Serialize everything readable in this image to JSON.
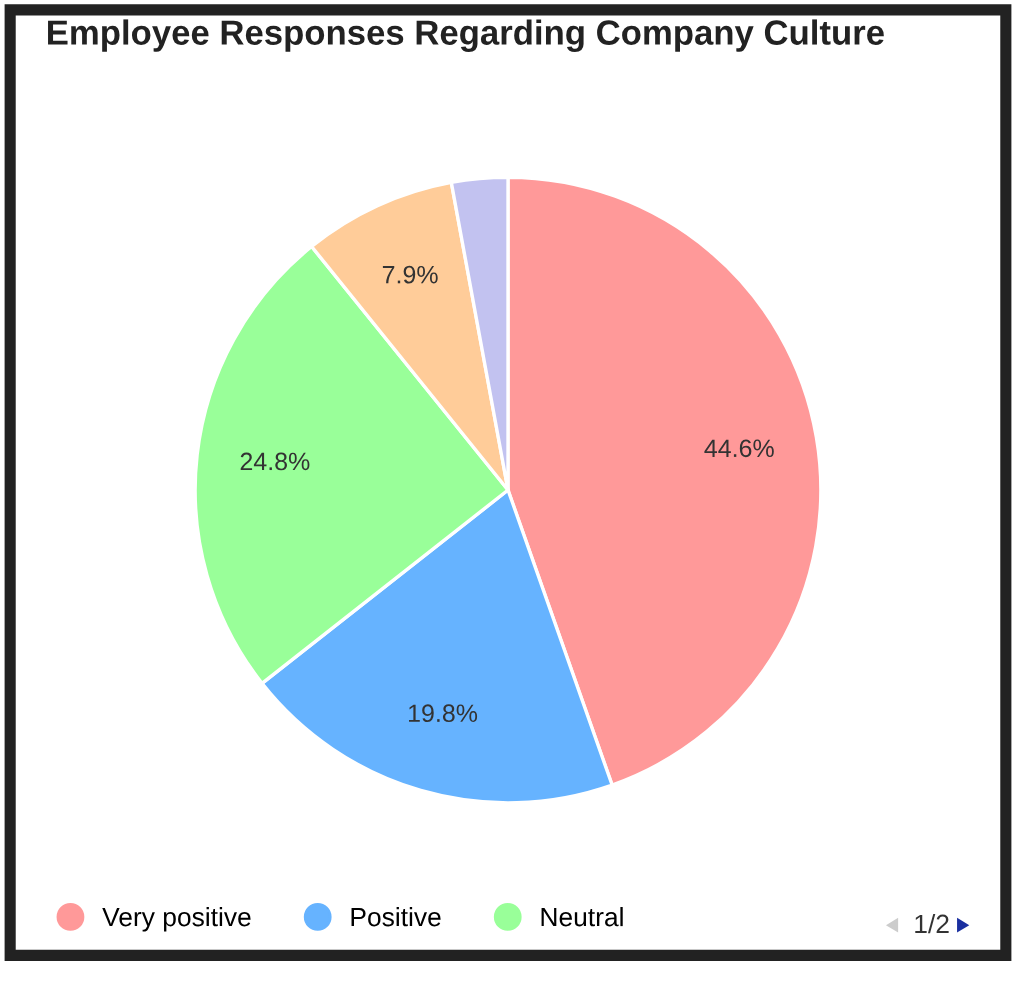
{
  "chart_data": {
    "type": "pie",
    "title": "Employee Responses Regarding Company Culture",
    "categories": [
      "Very positive",
      "Positive",
      "Neutral",
      null,
      null
    ],
    "values": [
      44.6,
      19.8,
      24.8,
      7.9,
      2.9
    ],
    "value_labels": [
      "44.6%",
      "19.8%",
      "24.8%",
      "7.9%",
      null
    ],
    "colors": [
      "#ff9999",
      "#66b3ff",
      "#99ff99",
      "#ffcc99",
      "#c2c2f0"
    ],
    "legend": "bottom left",
    "annotations": [
      "1/2"
    ]
  }
}
